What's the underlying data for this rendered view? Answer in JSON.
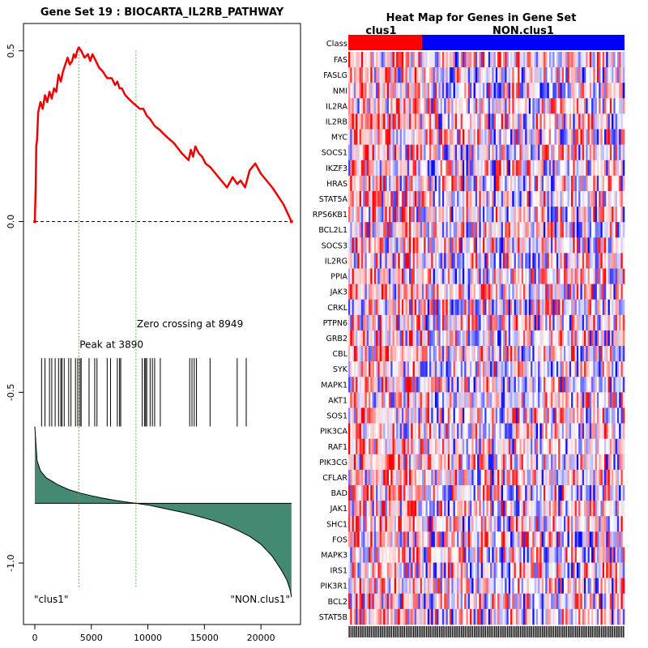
{
  "chart_data": [
    {
      "type": "line",
      "title": "Gene Set  19 : BIOCARTA_IL2RB_PATHWAY",
      "xlabel": "",
      "ylabel": "",
      "xlim": [
        -1000,
        23500
      ],
      "ylim": [
        -1.18,
        0.58
      ],
      "x_ticks": [
        0,
        5000,
        10000,
        15000,
        20000
      ],
      "x_tick_labels": [
        "0",
        "5000",
        "10000",
        "15000",
        "20000"
      ],
      "y_ticks": [
        0.5,
        0.0,
        -0.5,
        -1.0
      ],
      "y_tick_labels": [
        "0.5",
        "0.0",
        "-0.5",
        "-1.0"
      ],
      "grid": false,
      "running_es": {
        "name": "Running enrichment score",
        "color": "#ee0000",
        "x": [
          0,
          80,
          130,
          200,
          300,
          500,
          700,
          900,
          1100,
          1300,
          1500,
          1700,
          1900,
          2100,
          2300,
          2500,
          2700,
          2900,
          3100,
          3300,
          3450,
          3600,
          3750,
          3890,
          4100,
          4400,
          4700,
          4900,
          5100,
          5400,
          5700,
          6000,
          6400,
          6800,
          7100,
          7300,
          7500,
          7700,
          8000,
          8300,
          8600,
          8949,
          9300,
          9600,
          9900,
          10200,
          10600,
          11000,
          11600,
          12300,
          13000,
          13600,
          13800,
          14000,
          14200,
          14500,
          14800,
          15100,
          15500,
          16000,
          16500,
          17000,
          17500,
          17900,
          18200,
          18600,
          19000,
          19500,
          20000,
          21000,
          22000,
          22700
        ],
        "y": [
          0.0,
          0.1,
          0.22,
          0.24,
          0.32,
          0.35,
          0.33,
          0.37,
          0.35,
          0.38,
          0.36,
          0.39,
          0.38,
          0.43,
          0.41,
          0.44,
          0.46,
          0.48,
          0.46,
          0.47,
          0.49,
          0.48,
          0.5,
          0.51,
          0.5,
          0.48,
          0.49,
          0.47,
          0.49,
          0.47,
          0.45,
          0.44,
          0.42,
          0.42,
          0.4,
          0.41,
          0.39,
          0.39,
          0.37,
          0.36,
          0.35,
          0.34,
          0.33,
          0.33,
          0.31,
          0.3,
          0.28,
          0.27,
          0.25,
          0.23,
          0.2,
          0.18,
          0.21,
          0.19,
          0.22,
          0.2,
          0.19,
          0.17,
          0.16,
          0.14,
          0.12,
          0.1,
          0.13,
          0.11,
          0.12,
          0.1,
          0.15,
          0.17,
          0.14,
          0.1,
          0.05,
          0.0
        ]
      },
      "zero_line": {
        "y": 0.0,
        "style": "dashed",
        "color": "#000000"
      },
      "peak": {
        "x": 3890,
        "label": "Peak at 3890",
        "color": "#ff5555"
      },
      "zero_crossing": {
        "x": 8949,
        "label": "Zero crossing at 8949",
        "color": "#33cc33"
      },
      "hit_positions": [
        600,
        900,
        1300,
        1500,
        1800,
        2100,
        2300,
        2400,
        2600,
        3000,
        3200,
        3600,
        3800,
        4000,
        4100,
        4800,
        5300,
        5500,
        6400,
        6700,
        7300,
        7500,
        7600,
        9500,
        9700,
        9800,
        9900,
        10200,
        10400,
        10600,
        11100,
        13700,
        13900,
        14100,
        14300,
        15500,
        17900,
        18700
      ],
      "hit_range": [
        -0.6,
        -0.4
      ],
      "ranked_metric": {
        "name": "Ranked list metric",
        "color": "#448a73",
        "baseline": -0.825,
        "x": [
          0,
          200,
          500,
          1000,
          2000,
          3000,
          4000,
          5000,
          6000,
          7000,
          8000,
          8949,
          10000,
          11000,
          12000,
          13000,
          14000,
          15000,
          16000,
          17000,
          18000,
          19000,
          20000,
          21000,
          21800,
          22300,
          22600,
          22700
        ],
        "y": [
          -0.6,
          -0.7,
          -0.73,
          -0.75,
          -0.77,
          -0.785,
          -0.795,
          -0.803,
          -0.81,
          -0.816,
          -0.821,
          -0.825,
          -0.83,
          -0.837,
          -0.844,
          -0.851,
          -0.859,
          -0.868,
          -0.878,
          -0.89,
          -0.905,
          -0.922,
          -0.945,
          -0.98,
          -1.02,
          -1.05,
          -1.08,
          -1.1
        ]
      },
      "annotations": {
        "left_class": "\"clus1\"",
        "right_class": "\"NON.clus1\""
      }
    },
    {
      "type": "heatmap",
      "title": "Heat Map for Genes in Gene Set",
      "class_row_label": "Class",
      "groups": [
        {
          "name": "clus1",
          "color": "#ff0000",
          "n_samples": 40
        },
        {
          "name": "NON.clus1",
          "color": "#0000ff",
          "n_samples": 110
        }
      ],
      "genes": [
        "FAS",
        "FASLG",
        "NMI",
        "IL2RA",
        "IL2RB",
        "MYC",
        "SOCS1",
        "IKZF3",
        "HRAS",
        "STAT5A",
        "RPS6KB1",
        "BCL2L1",
        "SOCS3",
        "IL2RG",
        "PPIA",
        "JAK3",
        "CRKL",
        "PTPN6",
        "GRB2",
        "CBL",
        "SYK",
        "MAPK1",
        "AKT1",
        "SOS1",
        "PIK3CA",
        "RAF1",
        "PIK3CG",
        "CFLAR",
        "BAD",
        "JAK1",
        "SHC1",
        "FOS",
        "MAPK3",
        "IRS1",
        "PIK3R1",
        "BCL2",
        "STAT5B"
      ],
      "color_scale": {
        "low": "#0000ff",
        "mid": "#ffffff",
        "high": "#ff0000"
      }
    }
  ]
}
